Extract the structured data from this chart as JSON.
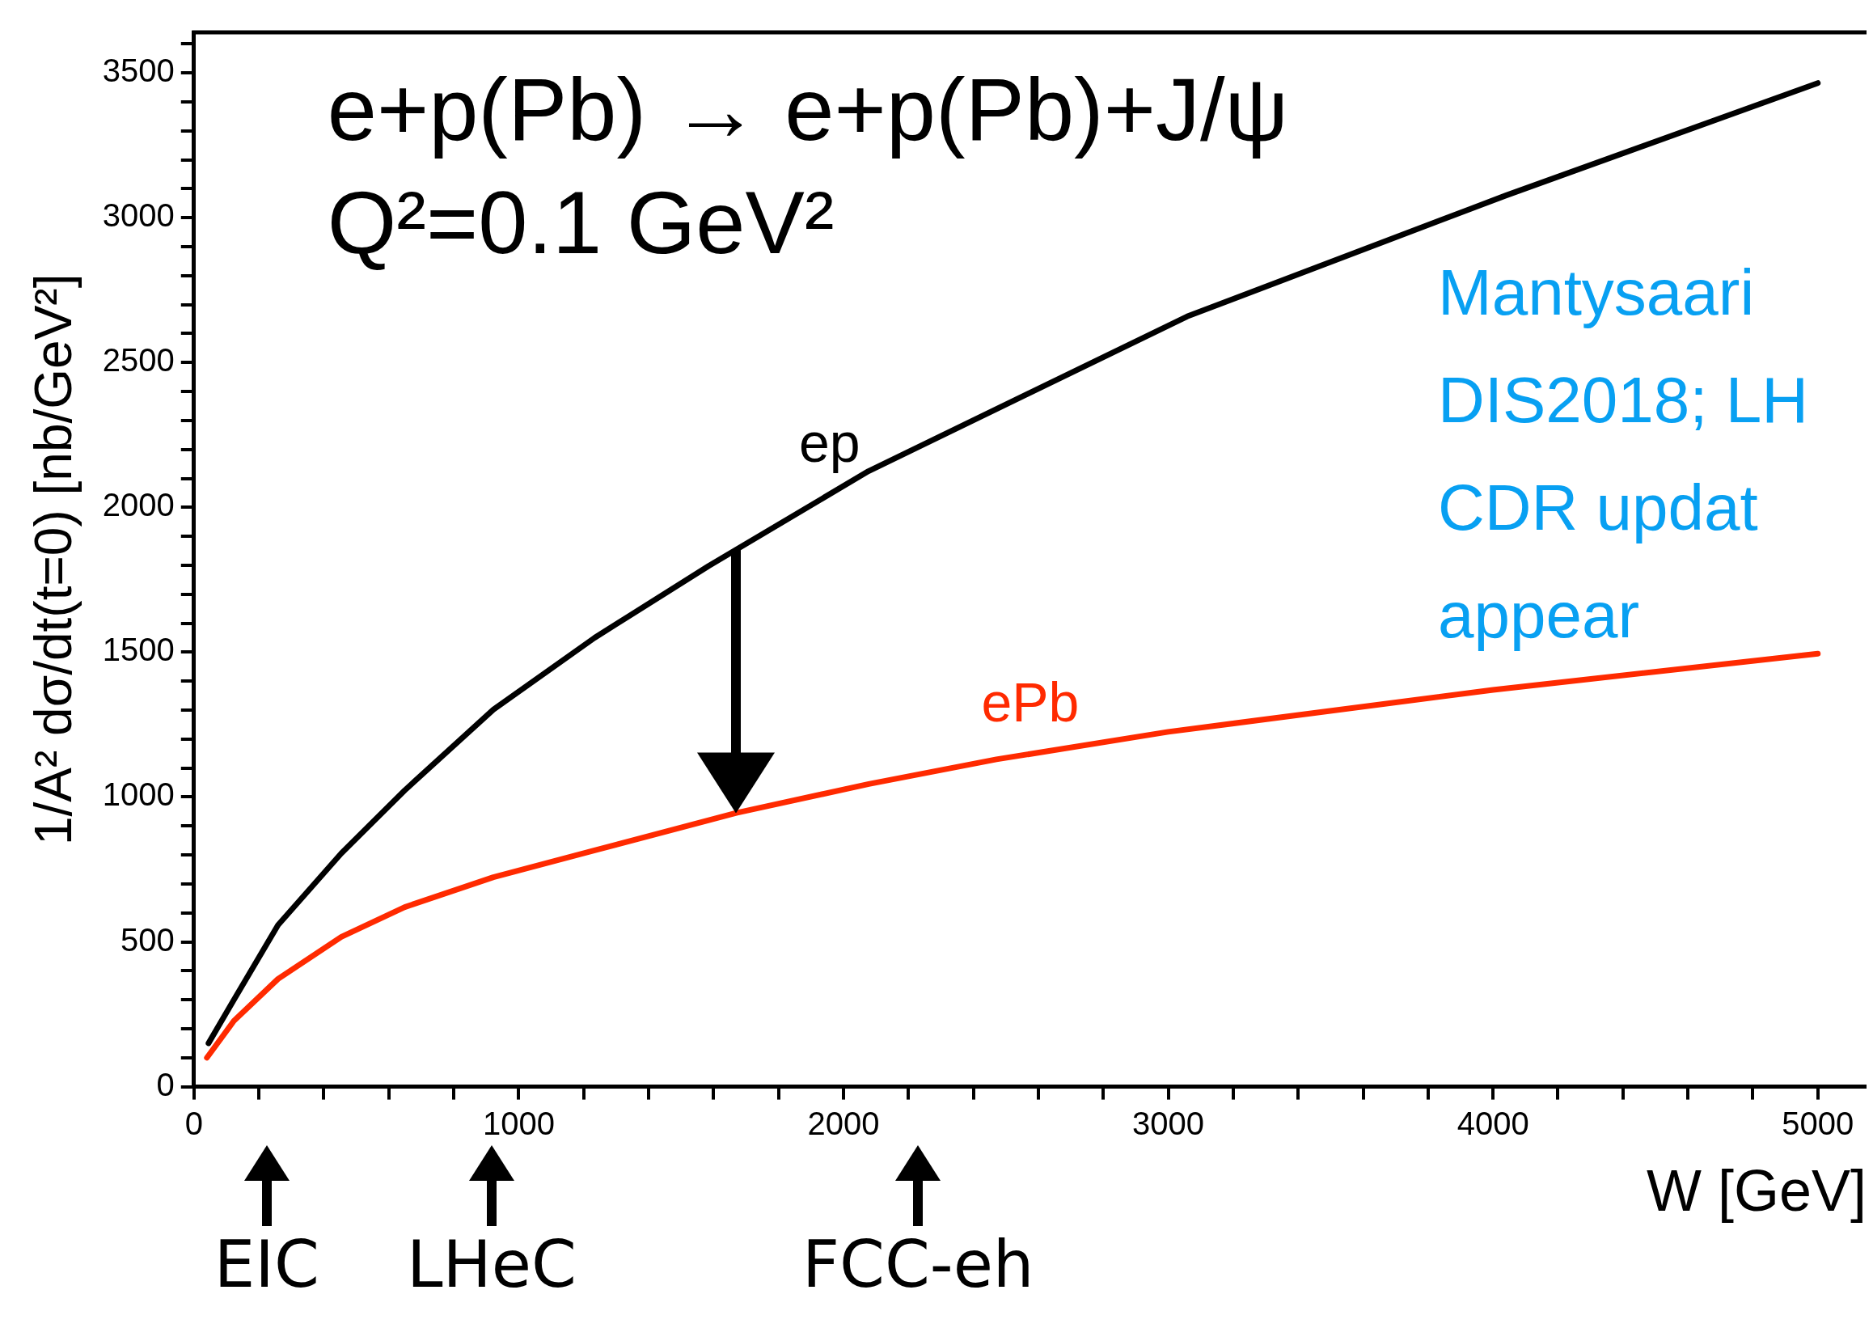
{
  "chart_data": {
    "type": "line",
    "title": "e+p(Pb) → e+p(Pb)+J/ψ",
    "subtitle": "Q²=0.1 GeV²",
    "xlabel": "W [GeV]",
    "ylabel": "1/A² dσ/dt(t=0) [nb/GeV²]",
    "series": [
      {
        "name": "ep",
        "color": "#000000",
        "x": [
          45,
          123,
          259,
          454,
          649,
          922,
          1234,
          1585,
          2077,
          3058,
          4040,
          5000
        ],
        "values": [
          150,
          300,
          558,
          806,
          1023,
          1302,
          1550,
          1798,
          2125,
          2659,
          3077,
          3465
        ]
      },
      {
        "name": "ePb",
        "color": "#ff2a00",
        "x": [
          40,
          123,
          259,
          454,
          649,
          922,
          1234,
          1670,
          2078,
          2471,
          3000,
          4000,
          5000
        ],
        "values": [
          100,
          227,
          372,
          517,
          620,
          723,
          816,
          945,
          1045,
          1130,
          1225,
          1370,
          1495
        ]
      }
    ],
    "xlim": [
      0,
      5150
    ],
    "ylim": [
      0,
      3640
    ],
    "xticks": [
      0,
      {
        "value": 200,
        "label": null
      },
      {
        "value": 400,
        "label": null
      },
      {
        "value": 600,
        "label": null
      },
      {
        "value": 800,
        "label": null
      },
      1000,
      {
        "value": 1200,
        "label": null
      },
      {
        "value": 1400,
        "label": null
      },
      {
        "value": 1600,
        "label": null
      },
      {
        "value": 1800,
        "label": null
      },
      2000,
      {
        "value": 2200,
        "label": null
      },
      {
        "value": 2400,
        "label": null
      },
      {
        "value": 2600,
        "label": null
      },
      {
        "value": 2800,
        "label": null
      },
      3000,
      {
        "value": 3200,
        "label": null
      },
      {
        "value": 3400,
        "label": null
      },
      {
        "value": 3600,
        "label": null
      },
      {
        "value": 3800,
        "label": null
      },
      4000,
      {
        "value": 4200,
        "label": null
      },
      {
        "value": 4400,
        "label": null
      },
      {
        "value": 4600,
        "label": null
      },
      {
        "value": 4800,
        "label": null
      },
      5000
    ],
    "yticks": [
      0,
      {
        "value": 100,
        "label": null
      },
      {
        "value": 200,
        "label": null
      },
      {
        "value": 300,
        "label": null
      },
      {
        "value": 400,
        "label": null
      },
      500,
      {
        "value": 600,
        "label": null
      },
      {
        "value": 700,
        "label": null
      },
      {
        "value": 800,
        "label": null
      },
      {
        "value": 900,
        "label": null
      },
      1000,
      {
        "value": 1100,
        "label": null
      },
      {
        "value": 1200,
        "label": null
      },
      {
        "value": 1300,
        "label": null
      },
      {
        "value": 1400,
        "label": null
      },
      1500,
      {
        "value": 1600,
        "label": null
      },
      {
        "value": 1700,
        "label": null
      },
      {
        "value": 1800,
        "label": null
      },
      {
        "value": 1900,
        "label": null
      },
      2000,
      {
        "value": 2100,
        "label": null
      },
      {
        "value": 2200,
        "label": null
      },
      {
        "value": 2300,
        "label": null
      },
      {
        "value": 2400,
        "label": null
      },
      2500,
      {
        "value": 2600,
        "label": null
      },
      {
        "value": 2700,
        "label": null
      },
      {
        "value": 2800,
        "label": null
      },
      {
        "value": 2900,
        "label": null
      },
      3000,
      {
        "value": 3100,
        "label": null
      },
      {
        "value": 3200,
        "label": null
      },
      {
        "value": 3300,
        "label": null
      },
      {
        "value": 3400,
        "label": null
      },
      3500,
      {
        "value": 3600,
        "label": null
      }
    ],
    "marker": "none",
    "line_style": "solid",
    "annotations": [
      "EIC",
      "LHeC",
      "FCC-eh",
      "Mantysaari",
      "DIS2018; LH",
      "CDR updat",
      "appear"
    ]
  }
}
